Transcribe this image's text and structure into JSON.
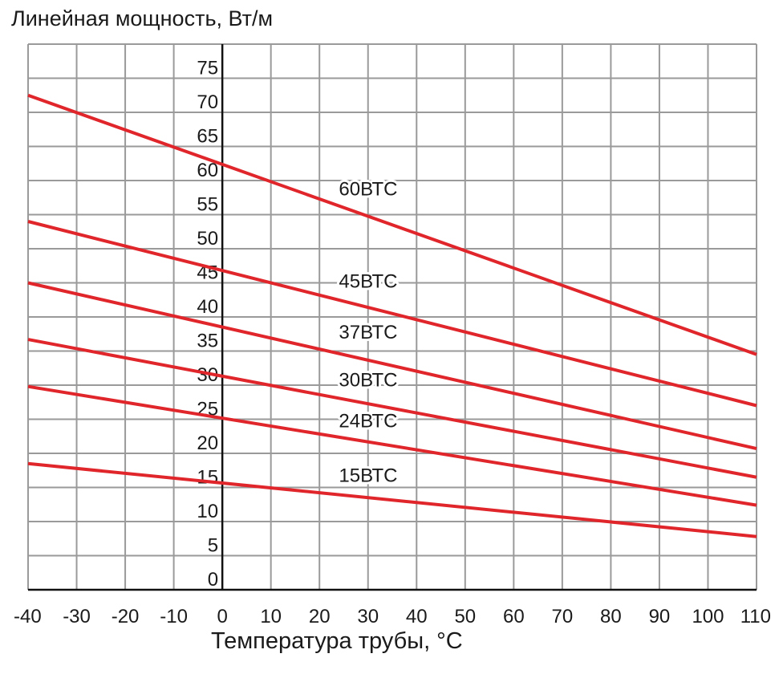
{
  "chart_data": {
    "type": "line",
    "title": "Линейная мощность, Вт/м",
    "xlabel": "Температура трубы, °С",
    "ylabel": "",
    "xlim": [
      -40,
      110
    ],
    "ylim": [
      0,
      80
    ],
    "x_ticks": [
      "-40",
      "-30",
      "-20",
      "-10",
      "0",
      "10",
      "20",
      "30",
      "40",
      "50",
      "60",
      "70",
      "80",
      "90",
      "100",
      "110"
    ],
    "y_ticks": [
      "0",
      "5",
      "10",
      "15",
      "20",
      "25",
      "30",
      "35",
      "40",
      "45",
      "50",
      "55",
      "60",
      "65",
      "70",
      "75"
    ],
    "grid": true,
    "line_color": "#e0262b",
    "grid_color": "#9a9a9a",
    "series": [
      {
        "name": "60ВТС",
        "x": [
          -40,
          110
        ],
        "y": [
          72.5,
          34.5
        ],
        "label_at": [
          24,
          57.8
        ]
      },
      {
        "name": "45ВТС",
        "x": [
          -40,
          110
        ],
        "y": [
          54.0,
          27.0
        ],
        "label_at": [
          24,
          44.3
        ]
      },
      {
        "name": "37ВТС",
        "x": [
          -40,
          110
        ],
        "y": [
          45.0,
          20.7
        ],
        "label_at": [
          24,
          36.8
        ]
      },
      {
        "name": "30ВТС",
        "x": [
          -40,
          110
        ],
        "y": [
          36.7,
          16.5
        ],
        "label_at": [
          24,
          29.8
        ]
      },
      {
        "name": "24ВТС",
        "x": [
          -40,
          110
        ],
        "y": [
          29.8,
          12.4
        ],
        "label_at": [
          24,
          23.8
        ]
      },
      {
        "name": "15ВТС",
        "x": [
          -40,
          110
        ],
        "y": [
          18.5,
          7.8
        ],
        "label_at": [
          24,
          15.8
        ]
      }
    ]
  }
}
